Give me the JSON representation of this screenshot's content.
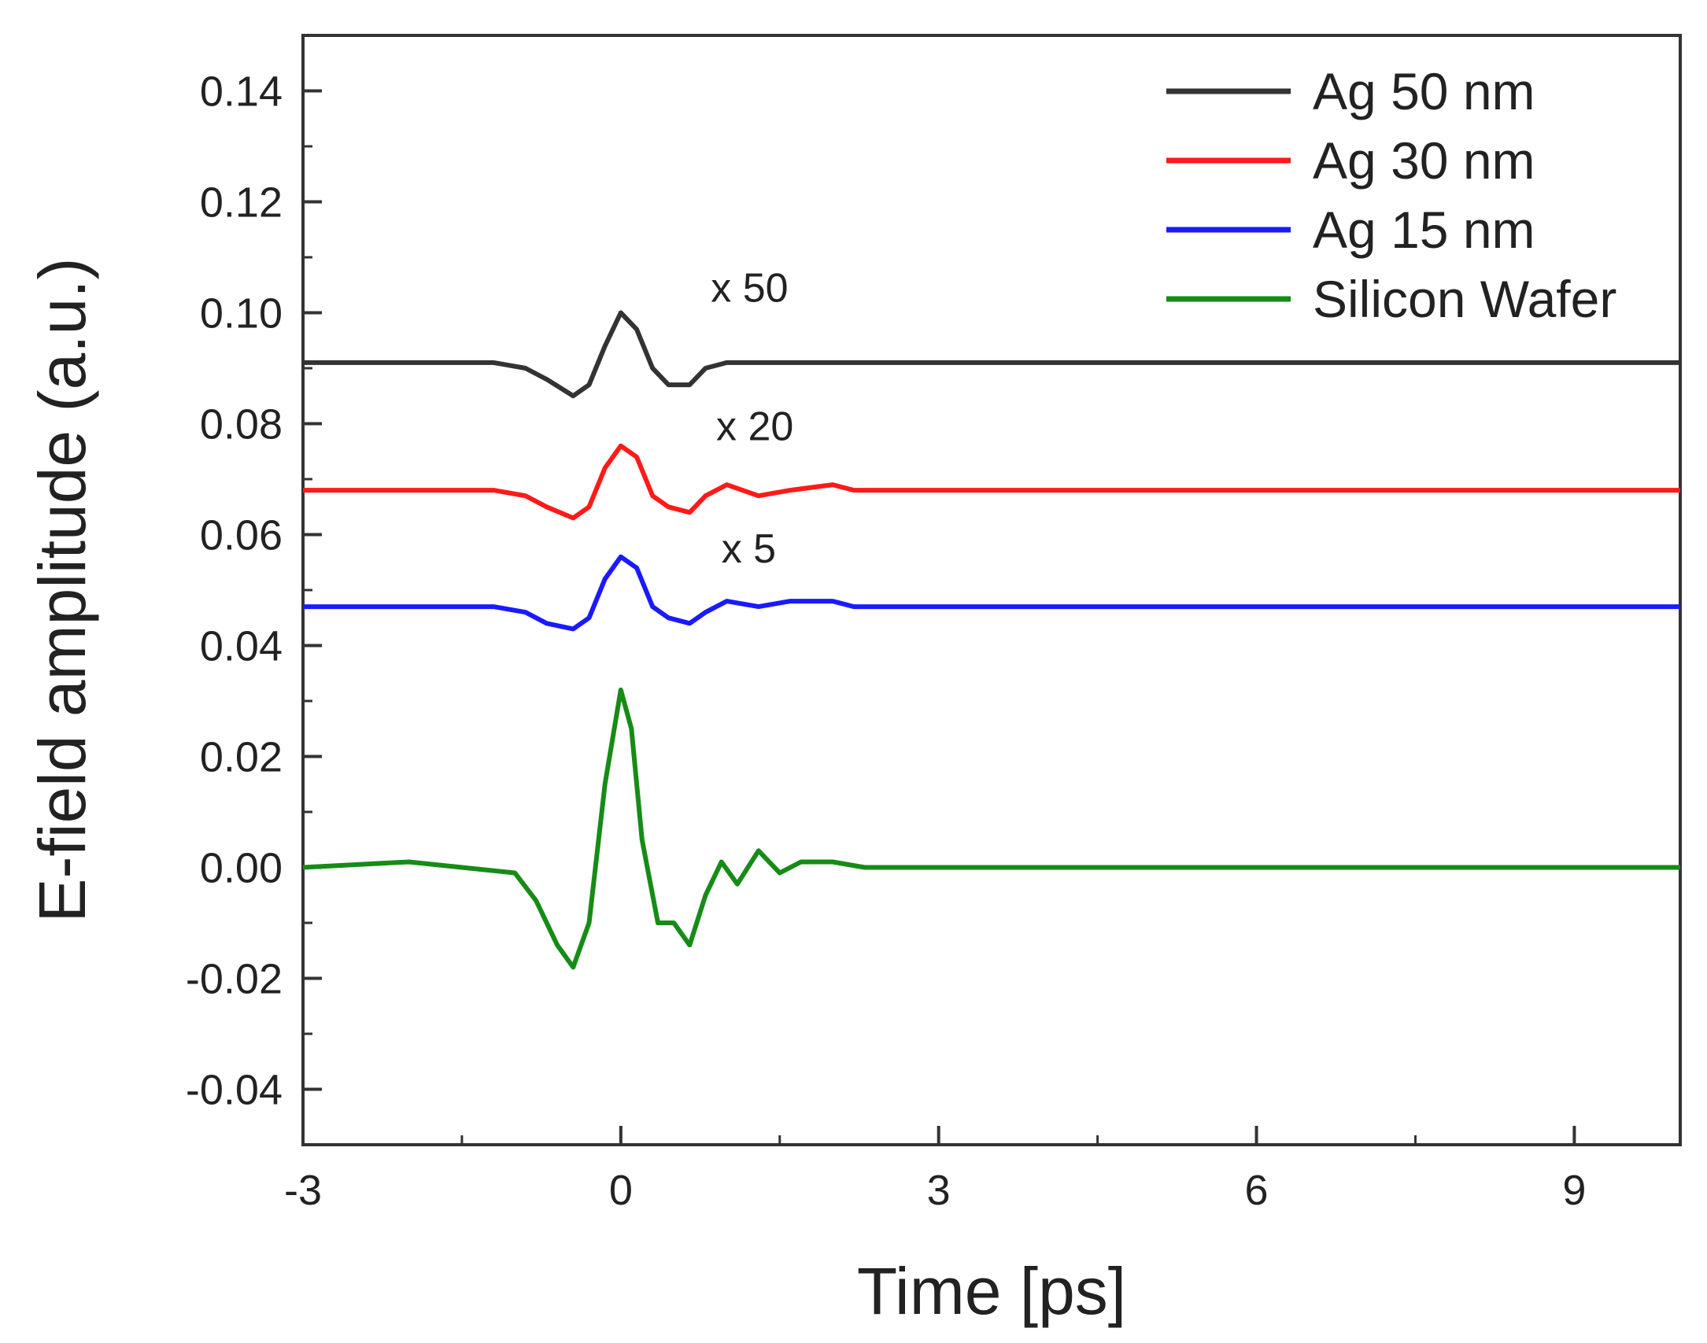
{
  "chart_data": {
    "type": "line",
    "title": "",
    "xlabel": "Time [ps]",
    "ylabel": "E-field amplitude (a.u.)",
    "xlim": [
      -3,
      10
    ],
    "ylim": [
      -0.05,
      0.15
    ],
    "x_ticks": [
      -3,
      0,
      3,
      6,
      9
    ],
    "x_tick_labels": [
      "-3",
      "0",
      "3",
      "6",
      "9"
    ],
    "y_ticks": [
      -0.04,
      -0.02,
      0.0,
      0.02,
      0.04,
      0.06,
      0.08,
      0.1,
      0.12,
      0.14
    ],
    "y_tick_labels": [
      "-0.04",
      "-0.02",
      "0.00",
      "0.02",
      "0.04",
      "0.06",
      "0.08",
      "0.10",
      "0.12",
      "0.14"
    ],
    "grid": false,
    "legend_position": "top-right",
    "series": [
      {
        "name": "Ag 50 nm",
        "color": "#333333",
        "x": [
          -3.0,
          -2.0,
          -1.2,
          -0.9,
          -0.7,
          -0.45,
          -0.3,
          -0.15,
          0.0,
          0.15,
          0.3,
          0.45,
          0.65,
          0.8,
          1.0,
          1.3,
          1.6,
          2.0,
          3.0,
          4.0,
          5.0,
          6.0,
          7.0,
          8.0,
          9.0,
          10.0
        ],
        "values": [
          0.091,
          0.091,
          0.091,
          0.09,
          0.088,
          0.085,
          0.087,
          0.094,
          0.1,
          0.097,
          0.09,
          0.087,
          0.087,
          0.09,
          0.091,
          0.091,
          0.091,
          0.091,
          0.091,
          0.091,
          0.091,
          0.091,
          0.091,
          0.091,
          0.091,
          0.091
        ]
      },
      {
        "name": "Ag 30 nm",
        "color": "#ff1a1a",
        "x": [
          -3.0,
          -2.0,
          -1.2,
          -0.9,
          -0.7,
          -0.45,
          -0.3,
          -0.15,
          0.0,
          0.15,
          0.3,
          0.45,
          0.65,
          0.8,
          1.0,
          1.3,
          1.6,
          2.0,
          2.2,
          3.0,
          4.0,
          5.0,
          6.0,
          7.0,
          8.0,
          9.0,
          10.0
        ],
        "values": [
          0.068,
          0.068,
          0.068,
          0.067,
          0.065,
          0.063,
          0.065,
          0.072,
          0.076,
          0.074,
          0.067,
          0.065,
          0.064,
          0.067,
          0.069,
          0.067,
          0.068,
          0.069,
          0.068,
          0.068,
          0.068,
          0.068,
          0.068,
          0.068,
          0.068,
          0.068,
          0.068
        ]
      },
      {
        "name": "Ag 15 nm",
        "color": "#1a1aff",
        "x": [
          -3.0,
          -2.0,
          -1.2,
          -0.9,
          -0.7,
          -0.45,
          -0.3,
          -0.15,
          0.0,
          0.15,
          0.3,
          0.45,
          0.65,
          0.8,
          1.0,
          1.3,
          1.6,
          2.0,
          2.2,
          3.0,
          4.0,
          5.0,
          6.0,
          7.0,
          8.0,
          9.0,
          10.0
        ],
        "values": [
          0.047,
          0.047,
          0.047,
          0.046,
          0.044,
          0.043,
          0.045,
          0.052,
          0.056,
          0.054,
          0.047,
          0.045,
          0.044,
          0.046,
          0.048,
          0.047,
          0.048,
          0.048,
          0.047,
          0.047,
          0.047,
          0.047,
          0.047,
          0.047,
          0.047,
          0.047,
          0.047
        ]
      },
      {
        "name": "Silicon Wafer",
        "color": "#168c16",
        "x": [
          -3.0,
          -2.0,
          -1.5,
          -1.0,
          -0.8,
          -0.6,
          -0.45,
          -0.3,
          -0.15,
          0.0,
          0.1,
          0.2,
          0.35,
          0.5,
          0.65,
          0.8,
          0.95,
          1.1,
          1.3,
          1.5,
          1.7,
          2.0,
          2.3,
          3.0,
          4.0,
          5.0,
          6.0,
          7.0,
          8.0,
          9.0,
          10.0
        ],
        "values": [
          0.0,
          0.001,
          0.0,
          -0.001,
          -0.006,
          -0.014,
          -0.018,
          -0.01,
          0.015,
          0.032,
          0.025,
          0.005,
          -0.01,
          -0.01,
          -0.014,
          -0.005,
          0.001,
          -0.003,
          0.003,
          -0.001,
          0.001,
          0.001,
          0.0,
          0.0,
          0.0,
          0.0,
          0.0,
          0.0,
          0.0,
          0.0,
          0.0
        ]
      }
    ],
    "annotations": [
      {
        "text": "x 50",
        "x": 0.85,
        "y": 0.102
      },
      {
        "text": "x 20",
        "x": 0.9,
        "y": 0.077
      },
      {
        "text": "x 5",
        "x": 0.95,
        "y": 0.055
      }
    ]
  }
}
